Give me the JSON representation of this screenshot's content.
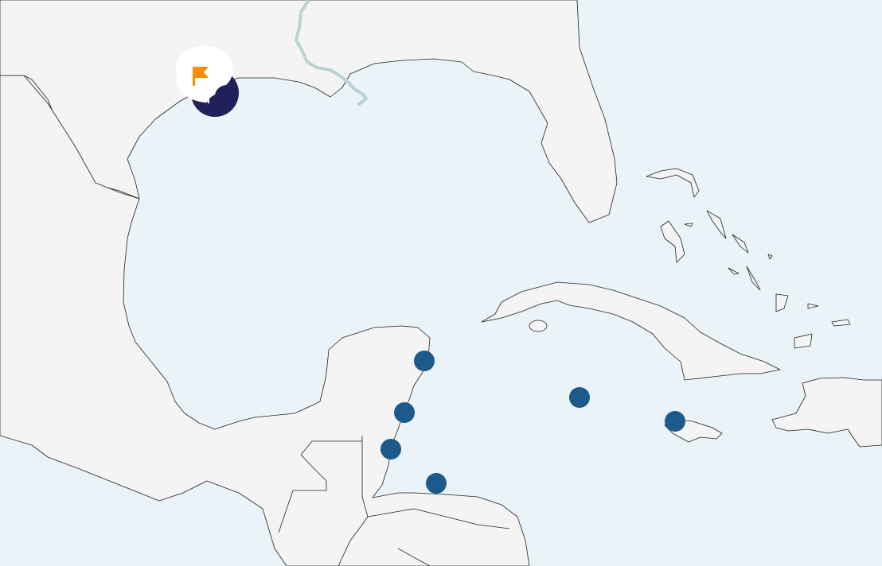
{
  "map": {
    "colors": {
      "water": "#eaf3f7",
      "land": "#f4f4f4",
      "coastline": "#222222",
      "river": "#b8d4d2",
      "location_marker": "#1b5a8a",
      "cluster_marker": "#22205a",
      "flag_badge_background": "#ffffff",
      "flag": "#ff8c00"
    },
    "markers": [
      {
        "kind": "location-marker"
      },
      {
        "kind": "location-marker"
      },
      {
        "kind": "location-marker"
      },
      {
        "kind": "location-marker"
      },
      {
        "kind": "location-marker"
      },
      {
        "kind": "location-marker"
      }
    ],
    "selected_marker": {
      "kind": "flagged-marker",
      "icon": "flag-icon"
    }
  }
}
